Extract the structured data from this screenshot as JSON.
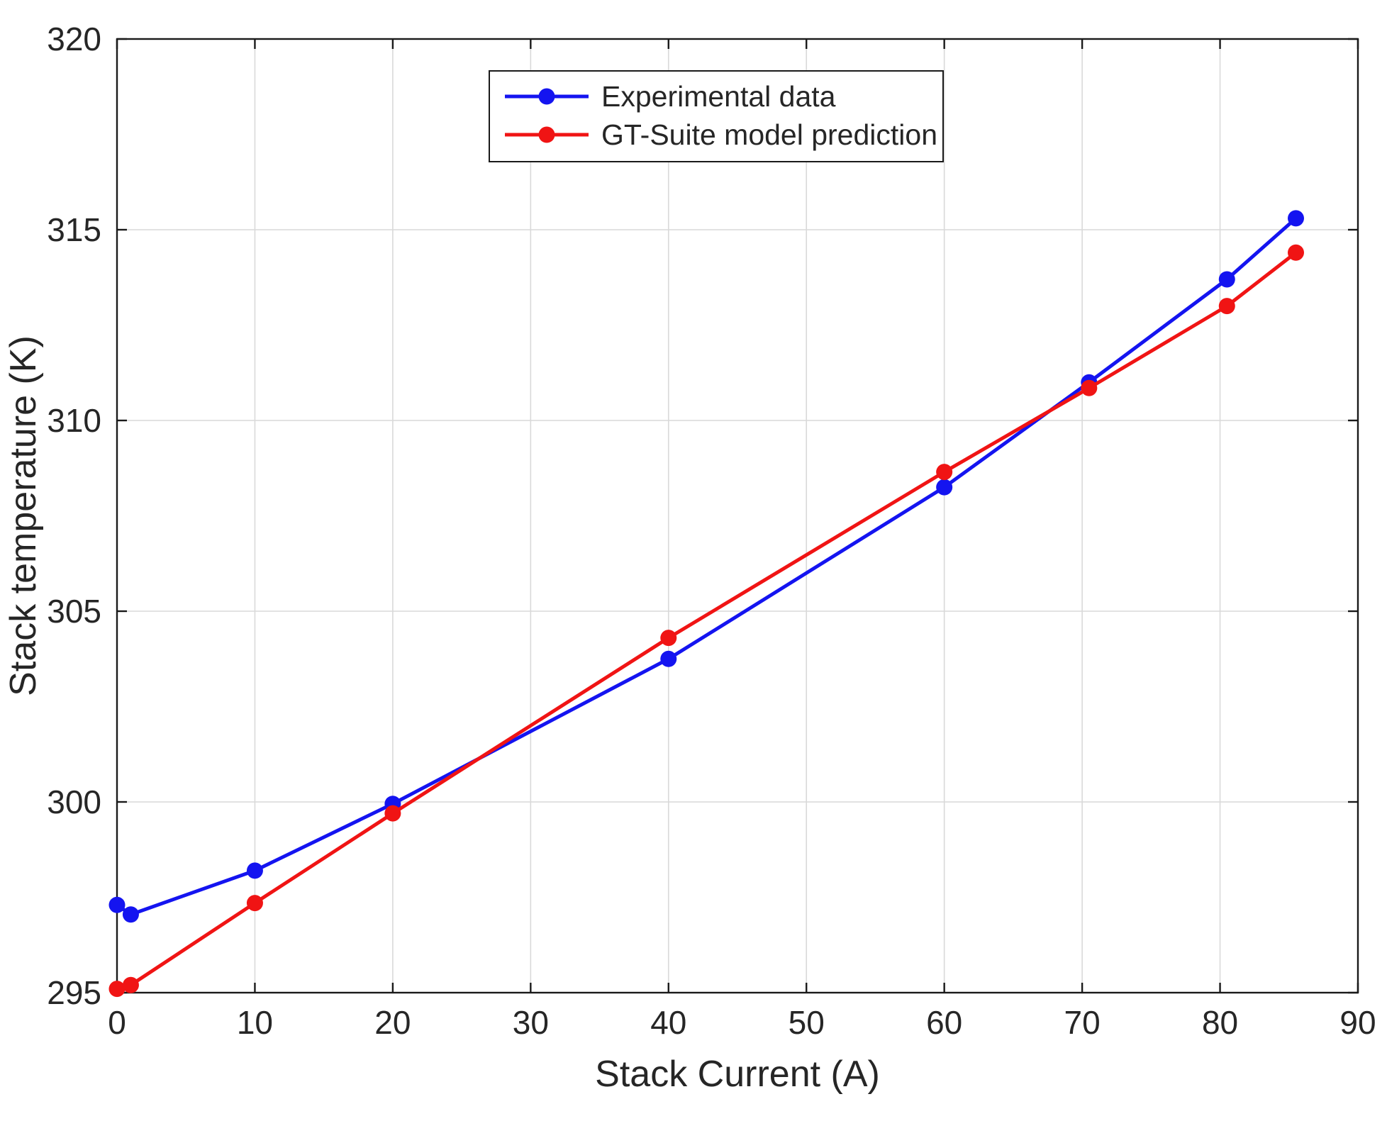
{
  "figure": {
    "background": "#ffffff"
  },
  "colors": {
    "axis": "#1a1a1a",
    "grid": "#d9d9d9",
    "tick_label": "#262626",
    "legend_border": "#1a1a1a",
    "legend_background": "#ffffff"
  },
  "chart_data": {
    "type": "line",
    "title": "",
    "xlabel": "Stack Current (A)",
    "ylabel": "Stack temperature (K)",
    "xlim": [
      0,
      90
    ],
    "ylim": [
      295,
      320
    ],
    "xticks": [
      0,
      10,
      20,
      30,
      40,
      50,
      60,
      70,
      80,
      90
    ],
    "yticks": [
      295,
      300,
      305,
      310,
      315,
      320
    ],
    "grid": true,
    "legend_position": "top-center-inside",
    "series": [
      {
        "name": "Experimental data",
        "color": "#1414f0",
        "marker": "circle",
        "x": [
          0,
          1,
          10,
          20,
          40,
          60,
          70.5,
          80.5,
          85.5
        ],
        "y": [
          297.3,
          297.05,
          298.2,
          299.95,
          303.75,
          308.25,
          311.0,
          313.7,
          315.3
        ]
      },
      {
        "name": "GT-Suite model prediction",
        "color": "#f01414",
        "marker": "circle",
        "x": [
          0,
          1,
          10,
          20,
          40,
          60,
          70.5,
          80.5,
          85.5
        ],
        "y": [
          295.1,
          295.2,
          297.35,
          299.7,
          304.3,
          308.65,
          310.85,
          313.0,
          314.4
        ]
      }
    ]
  }
}
